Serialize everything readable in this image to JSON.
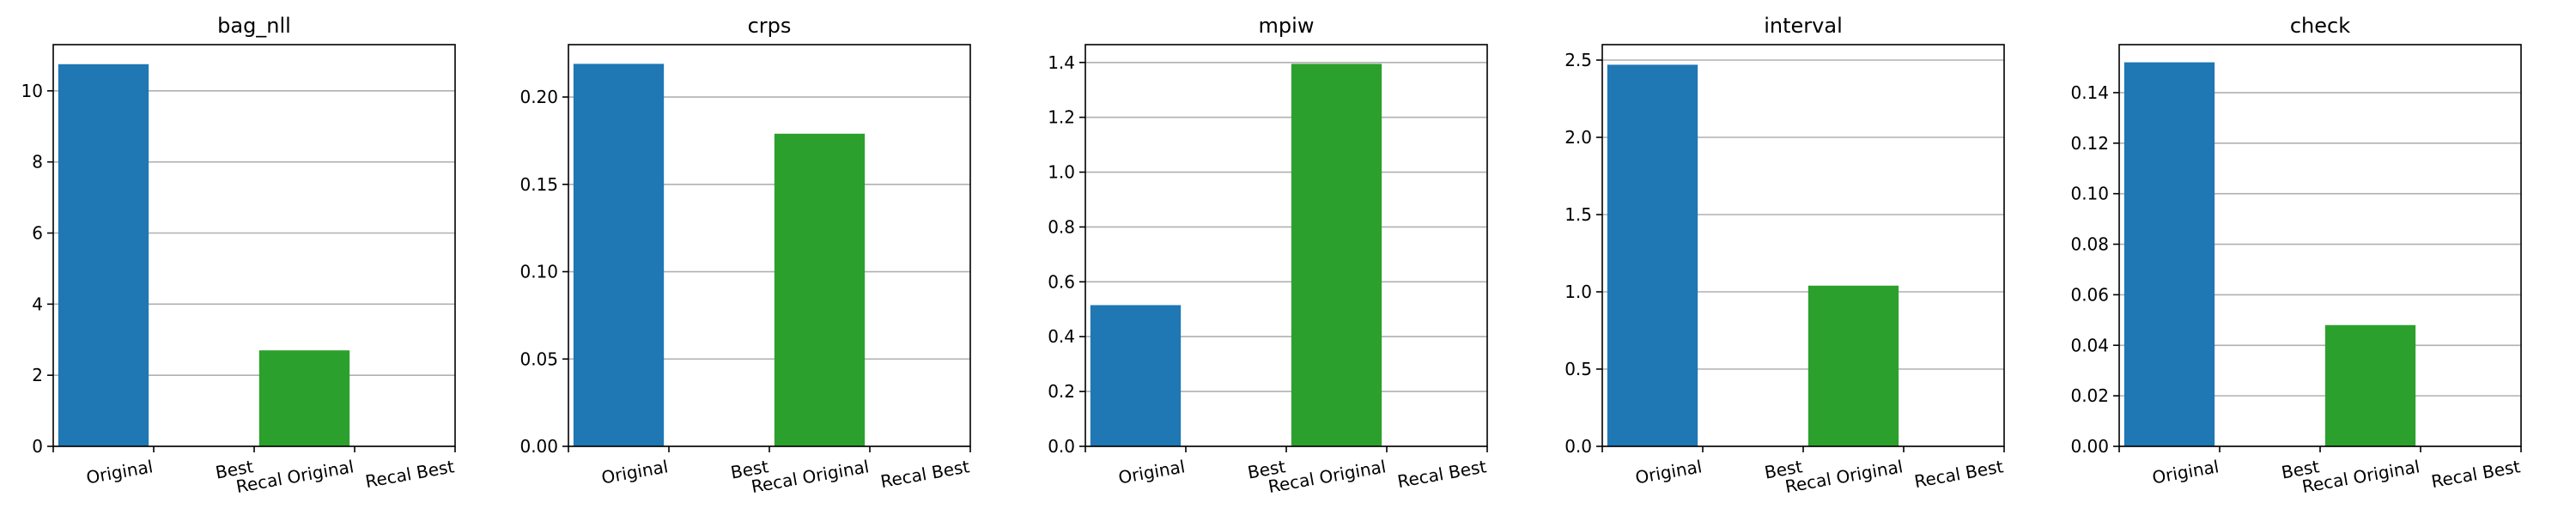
{
  "figure": {
    "categories": [
      "Original",
      "Best",
      "Recal Original",
      "Recal Best"
    ],
    "colors": {
      "Original": "#1f77b4",
      "Recal Original": "#2ca02c"
    },
    "grid": "y",
    "xtick_rotation_deg": -10
  },
  "chart_data": [
    {
      "type": "bar",
      "title": "bag_nll",
      "categories": [
        "Original",
        "Best",
        "Recal Original",
        "Recal Best"
      ],
      "values": [
        10.75,
        null,
        2.7,
        null
      ],
      "ylim": [
        0,
        11.3
      ],
      "yticks": [
        0,
        2,
        4,
        6,
        8,
        10
      ],
      "ytick_labels": [
        "0",
        "2",
        "4",
        "6",
        "8",
        "10"
      ]
    },
    {
      "type": "bar",
      "title": "crps",
      "categories": [
        "Original",
        "Best",
        "Recal Original",
        "Recal Best"
      ],
      "values": [
        0.219,
        null,
        0.179,
        null
      ],
      "ylim": [
        0,
        0.23
      ],
      "yticks": [
        0,
        0.05,
        0.1,
        0.15,
        0.2
      ],
      "ytick_labels": [
        "0.00",
        "0.05",
        "0.10",
        "0.15",
        "0.20"
      ]
    },
    {
      "type": "bar",
      "title": "mpiw",
      "categories": [
        "Original",
        "Best",
        "Recal Original",
        "Recal Best"
      ],
      "values": [
        0.515,
        null,
        1.395,
        null
      ],
      "ylim": [
        0,
        1.465
      ],
      "yticks": [
        0,
        0.2,
        0.4,
        0.6,
        0.8,
        1.0,
        1.2,
        1.4
      ],
      "ytick_labels": [
        "0.0",
        "0.2",
        "0.4",
        "0.6",
        "0.8",
        "1.0",
        "1.2",
        "1.4"
      ]
    },
    {
      "type": "bar",
      "title": "interval",
      "categories": [
        "Original",
        "Best",
        "Recal Original",
        "Recal Best"
      ],
      "values": [
        2.47,
        null,
        1.04,
        null
      ],
      "ylim": [
        0,
        2.6
      ],
      "yticks": [
        0,
        0.5,
        1.0,
        1.5,
        2.0,
        2.5
      ],
      "ytick_labels": [
        "0.0",
        "0.5",
        "1.0",
        "1.5",
        "2.0",
        "2.5"
      ]
    },
    {
      "type": "bar",
      "title": "check",
      "categories": [
        "Original",
        "Best",
        "Recal Original",
        "Recal Best"
      ],
      "values": [
        0.152,
        null,
        0.048,
        null
      ],
      "ylim": [
        0,
        0.159
      ],
      "yticks": [
        0,
        0.02,
        0.04,
        0.06,
        0.08,
        0.1,
        0.12,
        0.14
      ],
      "ytick_labels": [
        "0.00",
        "0.02",
        "0.04",
        "0.06",
        "0.08",
        "0.10",
        "0.12",
        "0.14"
      ]
    }
  ]
}
